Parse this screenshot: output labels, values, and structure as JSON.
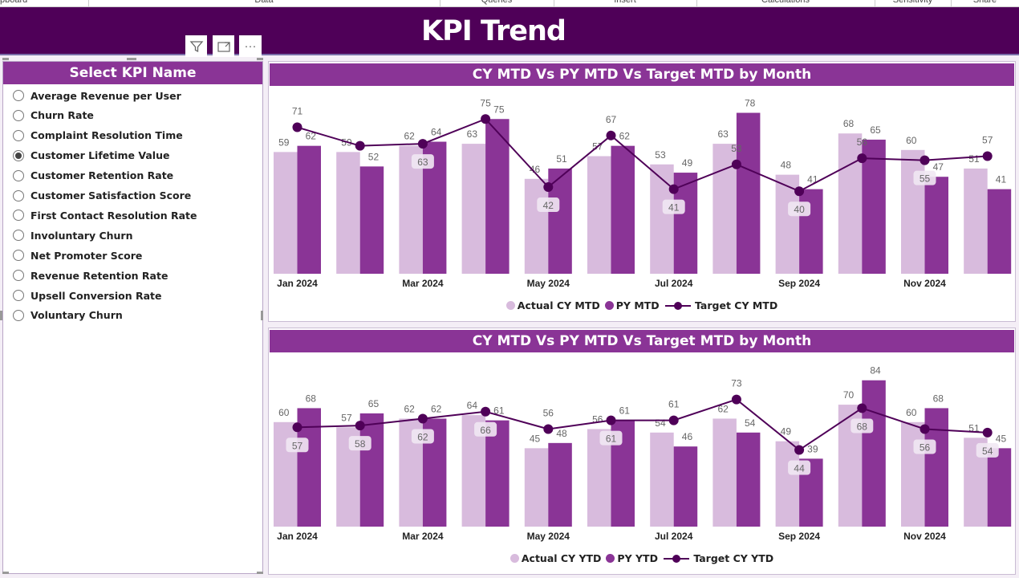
{
  "ribbon": {
    "groups": [
      "pboard",
      "Data",
      "Queries",
      "Insert",
      "Calculations",
      "Sensitivity",
      "Share"
    ]
  },
  "page": {
    "title": "KPI Trend"
  },
  "visual_toolbar": {
    "icons": [
      "filter-icon",
      "focus-mode-icon",
      "more-options-icon"
    ]
  },
  "slicer": {
    "title": "Select KPI Name",
    "selected": "Customer Lifetime Value",
    "items": [
      "Average Revenue per User",
      "Churn Rate",
      "Complaint Resolution Time",
      "Customer Lifetime Value",
      "Customer Retention Rate",
      "Customer Satisfaction Score",
      "First Contact Resolution Rate",
      "Involuntary Churn",
      "Net Promoter Score",
      "Revenue Retention Rate",
      "Upsell Conversion Rate",
      "Voluntary Churn"
    ]
  },
  "colors": {
    "title_bar": "#4f0058",
    "header": "#8a3496",
    "actual": "#d8bbdd",
    "py": "#8a3496",
    "target": "#4f0058"
  },
  "chart_data": [
    {
      "type": "bar+line",
      "title": "CY MTD Vs PY MTD Vs Target MTD by Month",
      "categories": [
        "Jan 2024",
        "Feb 2024",
        "Mar 2024",
        "Apr 2024",
        "May 2024",
        "Jun 2024",
        "Jul 2024",
        "Aug 2024",
        "Sep 2024",
        "Oct 2024",
        "Nov 2024",
        "Dec 2024"
      ],
      "tick_labels": [
        "Jan 2024",
        "",
        "Mar 2024",
        "",
        "May 2024",
        "",
        "Jul 2024",
        "",
        "Sep 2024",
        "",
        "Nov 2024",
        ""
      ],
      "series": [
        {
          "name": "Actual CY MTD",
          "kind": "bar",
          "values": [
            59,
            59,
            62,
            63,
            46,
            57,
            53,
            63,
            48,
            68,
            60,
            51
          ]
        },
        {
          "name": "PY MTD",
          "kind": "bar",
          "values": [
            62,
            52,
            64,
            75,
            51,
            62,
            49,
            78,
            41,
            65,
            47,
            41
          ]
        },
        {
          "name": "Target CY MTD",
          "kind": "line",
          "values": [
            71,
            62,
            63,
            75,
            42,
            67,
            41,
            53,
            40,
            56,
            55,
            57
          ]
        }
      ],
      "legend": "bottom-center",
      "grid": false
    },
    {
      "type": "bar+line",
      "title": "CY MTD Vs PY MTD Vs Target MTD by Month",
      "categories": [
        "Jan 2024",
        "Feb 2024",
        "Mar 2024",
        "Apr 2024",
        "May 2024",
        "Jun 2024",
        "Jul 2024",
        "Aug 2024",
        "Sep 2024",
        "Oct 2024",
        "Nov 2024",
        "Dec 2024"
      ],
      "tick_labels": [
        "Jan 2024",
        "",
        "Mar 2024",
        "",
        "May 2024",
        "",
        "Jul 2024",
        "",
        "Sep 2024",
        "",
        "Nov 2024",
        ""
      ],
      "series": [
        {
          "name": "Actual CY YTD",
          "kind": "bar",
          "values": [
            60,
            57,
            62,
            64,
            45,
            56,
            54,
            62,
            49,
            70,
            60,
            51
          ]
        },
        {
          "name": "PY YTD",
          "kind": "bar",
          "values": [
            68,
            65,
            62,
            61,
            48,
            61,
            46,
            54,
            39,
            84,
            68,
            45
          ]
        },
        {
          "name": "Target CY YTD",
          "kind": "line",
          "values": [
            57,
            58,
            62,
            66,
            56,
            61,
            61,
            73,
            44,
            68,
            56,
            54
          ]
        }
      ],
      "legend": "bottom-center",
      "grid": false
    }
  ]
}
